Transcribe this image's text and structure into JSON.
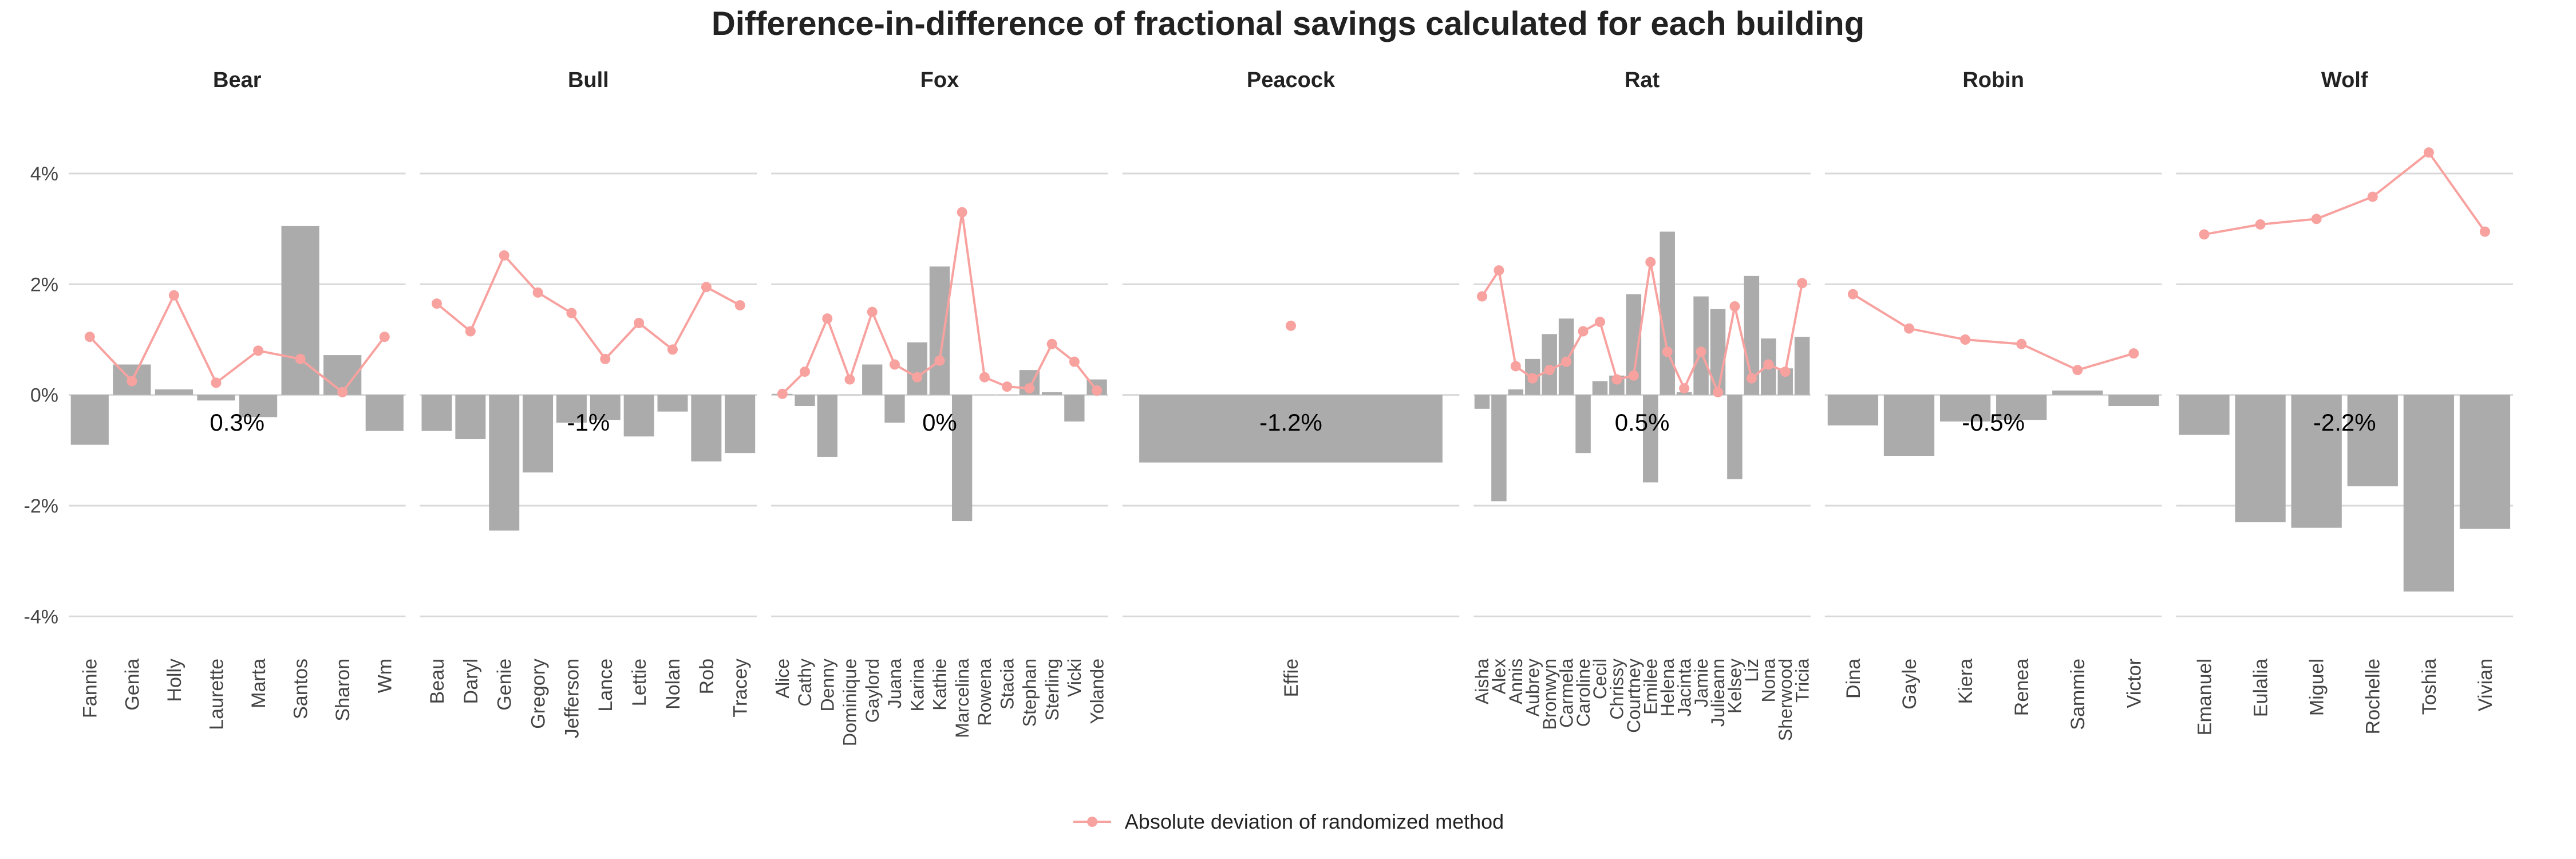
{
  "title": "Difference-in-difference of fractional savings calculated for each building",
  "legend": {
    "label": "Absolute deviation of randomized method",
    "position": "bottom"
  },
  "colors": {
    "bar": "#ababab",
    "line": "#f8a2a0",
    "grid": "#d9d9d9",
    "text": "#222222",
    "axis_text": "#444444"
  },
  "chart_data": {
    "type": "bar",
    "facet_by": "building",
    "y_unit": "%",
    "ylim": [
      -4.4,
      4.6
    ],
    "y_ticks": [
      -4,
      -2,
      0,
      2,
      4
    ],
    "y_tick_labels": [
      "-4%",
      "-2%",
      "0%",
      "2%",
      "4%"
    ],
    "grid": true,
    "panels": [
      {
        "name": "Bear",
        "summary": "0.3%",
        "categories": [
          "Fannie",
          "Genia",
          "Holly",
          "Laurette",
          "Marta",
          "Santos",
          "Sharon",
          "Wm"
        ],
        "values": [
          -0.9,
          0.55,
          0.1,
          -0.1,
          -0.4,
          3.05,
          0.72,
          -0.65
        ],
        "deviation": [
          1.05,
          0.25,
          1.8,
          0.22,
          0.8,
          0.65,
          0.05,
          1.05
        ]
      },
      {
        "name": "Bull",
        "summary": "-1%",
        "categories": [
          "Beau",
          "Daryl",
          "Genie",
          "Gregory",
          "Jefferson",
          "Lance",
          "Lettie",
          "Nolan",
          "Rob",
          "Tracey"
        ],
        "values": [
          -0.65,
          -0.8,
          -2.45,
          -1.4,
          -0.5,
          -0.45,
          -0.75,
          -0.3,
          -1.2,
          -1.05
        ],
        "deviation": [
          1.65,
          1.15,
          2.52,
          1.85,
          1.48,
          0.65,
          1.3,
          0.82,
          1.95,
          1.62
        ]
      },
      {
        "name": "Fox",
        "summary": "0%",
        "categories": [
          "Alice",
          "Cathy",
          "Denny",
          "Dominique",
          "Gaylord",
          "Juana",
          "Karina",
          "Kathie",
          "Marcelina",
          "Rowena",
          "Stacia",
          "Stephan",
          "Sterling",
          "Vicki",
          "Yolande"
        ],
        "values": [
          0.02,
          -0.2,
          -1.12,
          0.0,
          0.55,
          -0.5,
          0.95,
          2.32,
          -2.28,
          0.0,
          0.0,
          0.45,
          0.05,
          -0.48,
          0.28
        ],
        "deviation": [
          0.02,
          0.42,
          1.38,
          0.28,
          1.5,
          0.55,
          0.32,
          0.62,
          3.3,
          0.32,
          0.15,
          0.12,
          0.92,
          0.6,
          0.08
        ]
      },
      {
        "name": "Peacock",
        "summary": "-1.2%",
        "categories": [
          "Effie"
        ],
        "values": [
          -1.22
        ],
        "deviation": [
          1.25
        ]
      },
      {
        "name": "Rat",
        "summary": "0.5%",
        "categories": [
          "Aisha",
          "Alex",
          "Annis",
          "Aubrey",
          "Bronwyn",
          "Carmela",
          "Caroline",
          "Cecil",
          "Chrissy",
          "Courtney",
          "Emilee",
          "Helena",
          "Jacinta",
          "Jamie",
          "Julieann",
          "Kelsey",
          "Liz",
          "Nona",
          "Sherwood",
          "Tricia"
        ],
        "values": [
          -0.25,
          -1.92,
          0.1,
          0.65,
          1.1,
          1.38,
          -1.05,
          0.25,
          0.35,
          1.82,
          -1.58,
          2.95,
          0.05,
          1.78,
          1.55,
          -1.52,
          2.15,
          1.02,
          0.48,
          1.05
        ],
        "deviation": [
          1.78,
          2.25,
          0.52,
          0.3,
          0.45,
          0.6,
          1.15,
          1.32,
          0.28,
          0.35,
          2.4,
          0.78,
          0.12,
          0.78,
          0.05,
          1.6,
          0.3,
          0.55,
          0.42,
          2.02
        ]
      },
      {
        "name": "Robin",
        "summary": "-0.5%",
        "categories": [
          "Dina",
          "Gayle",
          "Kiera",
          "Renea",
          "Sammie",
          "Victor"
        ],
        "values": [
          -0.55,
          -1.1,
          -0.48,
          -0.45,
          0.08,
          -0.2
        ],
        "deviation": [
          1.82,
          1.2,
          1.0,
          0.92,
          0.45,
          0.75
        ]
      },
      {
        "name": "Wolf",
        "summary": "-2.2%",
        "categories": [
          "Emanuel",
          "Eulalia",
          "Miguel",
          "Rochelle",
          "Toshia",
          "Vivian"
        ],
        "values": [
          -0.72,
          -2.3,
          -2.4,
          -1.65,
          -3.55,
          -2.42
        ],
        "deviation": [
          2.9,
          3.08,
          3.18,
          3.58,
          4.38,
          2.95
        ]
      }
    ]
  }
}
